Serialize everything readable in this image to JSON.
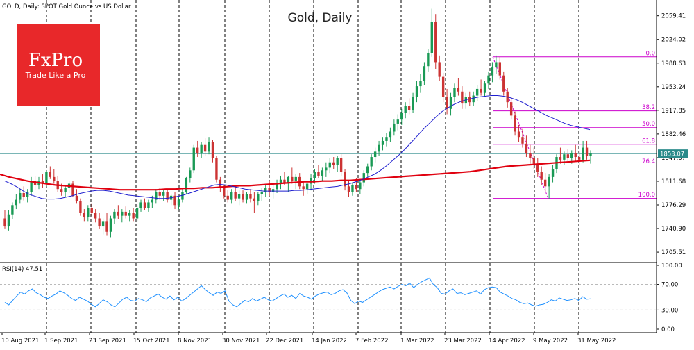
{
  "chart_data": {
    "type": "candlestick",
    "symbol_info": "GOLD, Daily:  SPOT Gold Ounce vs US Dollar",
    "title": "Gold, Daily",
    "brand": {
      "name": "FxPro",
      "tagline": "Trade Like a Pro",
      "color": "#e8282a"
    },
    "price_scale": {
      "min": 1690,
      "max": 2083,
      "labels": [
        "2059.41",
        "2024.02",
        "1988.63",
        "1953.24",
        "1917.85",
        "1882.46",
        "1847.07",
        "1811.68",
        "1776.29",
        "1740.90",
        "1705.51"
      ],
      "values": [
        2059.41,
        2024.02,
        1988.63,
        1953.24,
        1917.85,
        1882.46,
        1847.07,
        1811.68,
        1776.29,
        1740.9,
        1705.51
      ]
    },
    "current_price": {
      "label": "1853.07",
      "value": 1853.07
    },
    "x_labels": [
      "10 Aug 2021",
      "1 Sep 2021",
      "23 Sep 2021",
      "15 Oct 2021",
      "8 Nov 2021",
      "30 Nov 2021",
      "22 Dec 2021",
      "14 Jan 2022",
      "7 Feb 2022",
      "1 Mar 2022",
      "23 Mar 2022",
      "14 Apr 2022",
      "9 May 2022",
      "31 May 2022"
    ],
    "fibonacci": {
      "high": 1998,
      "low": 1786,
      "levels": [
        {
          "label": "0.0",
          "ratio": 0.0
        },
        {
          "label": "38.2",
          "ratio": 0.382
        },
        {
          "label": "50.0",
          "ratio": 0.5
        },
        {
          "label": "61.8",
          "ratio": 0.618
        },
        {
          "label": "76.4",
          "ratio": 0.764
        },
        {
          "label": "100.0",
          "ratio": 1.0
        }
      ]
    },
    "candles": [
      [
        1756,
        1768,
        1740,
        1744
      ],
      [
        1744,
        1768,
        1738,
        1762
      ],
      [
        1762,
        1780,
        1755,
        1776
      ],
      [
        1776,
        1792,
        1770,
        1784
      ],
      [
        1784,
        1800,
        1778,
        1794
      ],
      [
        1794,
        1804,
        1783,
        1788
      ],
      [
        1788,
        1800,
        1780,
        1796
      ],
      [
        1796,
        1818,
        1790,
        1812
      ],
      [
        1812,
        1820,
        1798,
        1806
      ],
      [
        1806,
        1818,
        1800,
        1812
      ],
      [
        1812,
        1822,
        1802,
        1808
      ],
      [
        1808,
        1828,
        1804,
        1826
      ],
      [
        1826,
        1834,
        1815,
        1818
      ],
      [
        1818,
        1830,
        1808,
        1812
      ],
      [
        1812,
        1820,
        1795,
        1800
      ],
      [
        1800,
        1808,
        1790,
        1796
      ],
      [
        1796,
        1806,
        1788,
        1802
      ],
      [
        1802,
        1812,
        1794,
        1808
      ],
      [
        1808,
        1812,
        1788,
        1790
      ],
      [
        1790,
        1800,
        1778,
        1782
      ],
      [
        1782,
        1786,
        1760,
        1764
      ],
      [
        1764,
        1770,
        1752,
        1758
      ],
      [
        1758,
        1776,
        1752,
        1772
      ],
      [
        1772,
        1778,
        1760,
        1764
      ],
      [
        1764,
        1770,
        1750,
        1756
      ],
      [
        1756,
        1764,
        1740,
        1744
      ],
      [
        1744,
        1756,
        1732,
        1752
      ],
      [
        1752,
        1764,
        1730,
        1736
      ],
      [
        1736,
        1760,
        1728,
        1756
      ],
      [
        1756,
        1770,
        1748,
        1766
      ],
      [
        1766,
        1776,
        1755,
        1760
      ],
      [
        1760,
        1770,
        1750,
        1766
      ],
      [
        1766,
        1774,
        1756,
        1760
      ],
      [
        1760,
        1768,
        1752,
        1764
      ],
      [
        1764,
        1772,
        1752,
        1756
      ],
      [
        1756,
        1776,
        1752,
        1772
      ],
      [
        1772,
        1784,
        1766,
        1780
      ],
      [
        1780,
        1786,
        1768,
        1772
      ],
      [
        1772,
        1784,
        1766,
        1780
      ],
      [
        1780,
        1790,
        1772,
        1784
      ],
      [
        1784,
        1800,
        1778,
        1796
      ],
      [
        1796,
        1802,
        1784,
        1790
      ],
      [
        1790,
        1800,
        1782,
        1796
      ],
      [
        1796,
        1800,
        1780,
        1784
      ],
      [
        1784,
        1792,
        1776,
        1790
      ],
      [
        1790,
        1796,
        1770,
        1776
      ],
      [
        1776,
        1788,
        1770,
        1784
      ],
      [
        1784,
        1800,
        1780,
        1796
      ],
      [
        1796,
        1818,
        1792,
        1816
      ],
      [
        1816,
        1832,
        1810,
        1828
      ],
      [
        1828,
        1866,
        1824,
        1862
      ],
      [
        1862,
        1872,
        1848,
        1854
      ],
      [
        1854,
        1870,
        1846,
        1866
      ],
      [
        1866,
        1876,
        1850,
        1856
      ],
      [
        1856,
        1878,
        1852,
        1870
      ],
      [
        1870,
        1874,
        1840,
        1846
      ],
      [
        1846,
        1850,
        1810,
        1814
      ],
      [
        1814,
        1818,
        1796,
        1802
      ],
      [
        1802,
        1806,
        1786,
        1790
      ],
      [
        1790,
        1798,
        1780,
        1784
      ],
      [
        1784,
        1800,
        1778,
        1796
      ],
      [
        1796,
        1804,
        1782,
        1786
      ],
      [
        1786,
        1798,
        1776,
        1792
      ],
      [
        1792,
        1798,
        1780,
        1784
      ],
      [
        1784,
        1796,
        1778,
        1792
      ],
      [
        1792,
        1800,
        1780,
        1786
      ],
      [
        1786,
        1796,
        1764,
        1782
      ],
      [
        1782,
        1796,
        1776,
        1792
      ],
      [
        1792,
        1802,
        1782,
        1796
      ],
      [
        1796,
        1808,
        1788,
        1802
      ],
      [
        1802,
        1812,
        1790,
        1796
      ],
      [
        1796,
        1806,
        1786,
        1800
      ],
      [
        1800,
        1814,
        1794,
        1808
      ],
      [
        1808,
        1820,
        1800,
        1814
      ],
      [
        1814,
        1826,
        1806,
        1808
      ],
      [
        1808,
        1820,
        1796,
        1818
      ],
      [
        1818,
        1832,
        1808,
        1812
      ],
      [
        1812,
        1822,
        1800,
        1818
      ],
      [
        1818,
        1824,
        1800,
        1804
      ],
      [
        1804,
        1812,
        1790,
        1800
      ],
      [
        1800,
        1812,
        1792,
        1808
      ],
      [
        1808,
        1822,
        1798,
        1816
      ],
      [
        1816,
        1830,
        1808,
        1826
      ],
      [
        1826,
        1836,
        1816,
        1820
      ],
      [
        1820,
        1832,
        1812,
        1828
      ],
      [
        1828,
        1840,
        1818,
        1832
      ],
      [
        1832,
        1846,
        1824,
        1840
      ],
      [
        1840,
        1848,
        1830,
        1836
      ],
      [
        1836,
        1850,
        1826,
        1846
      ],
      [
        1846,
        1852,
        1820,
        1826
      ],
      [
        1826,
        1830,
        1798,
        1804
      ],
      [
        1804,
        1812,
        1788,
        1796
      ],
      [
        1796,
        1810,
        1790,
        1806
      ],
      [
        1806,
        1816,
        1796,
        1800
      ],
      [
        1800,
        1814,
        1792,
        1810
      ],
      [
        1810,
        1828,
        1804,
        1824
      ],
      [
        1824,
        1838,
        1818,
        1834
      ],
      [
        1834,
        1852,
        1828,
        1848
      ],
      [
        1848,
        1862,
        1840,
        1856
      ],
      [
        1856,
        1872,
        1850,
        1866
      ],
      [
        1866,
        1878,
        1858,
        1872
      ],
      [
        1872,
        1884,
        1864,
        1878
      ],
      [
        1878,
        1892,
        1870,
        1886
      ],
      [
        1886,
        1904,
        1880,
        1898
      ],
      [
        1898,
        1912,
        1888,
        1904
      ],
      [
        1904,
        1920,
        1896,
        1914
      ],
      [
        1914,
        1930,
        1906,
        1924
      ],
      [
        1924,
        1936,
        1912,
        1918
      ],
      [
        1918,
        1944,
        1914,
        1938
      ],
      [
        1938,
        1962,
        1930,
        1954
      ],
      [
        1954,
        1972,
        1944,
        1962
      ],
      [
        1962,
        1990,
        1956,
        1984
      ],
      [
        1984,
        2010,
        1976,
        2004
      ],
      [
        2004,
        2070,
        1998,
        2050
      ],
      [
        2050,
        2062,
        1980,
        1990
      ],
      [
        1990,
        2000,
        1962,
        1968
      ],
      [
        1968,
        1974,
        1930,
        1938
      ],
      [
        1938,
        1950,
        1912,
        1920
      ],
      [
        1920,
        1944,
        1910,
        1938
      ],
      [
        1938,
        1958,
        1930,
        1952
      ],
      [
        1952,
        1966,
        1940,
        1946
      ],
      [
        1946,
        1954,
        1920,
        1928
      ],
      [
        1928,
        1944,
        1920,
        1938
      ],
      [
        1938,
        1946,
        1924,
        1930
      ],
      [
        1930,
        1946,
        1924,
        1940
      ],
      [
        1940,
        1956,
        1932,
        1950
      ],
      [
        1950,
        1964,
        1940,
        1944
      ],
      [
        1944,
        1962,
        1938,
        1958
      ],
      [
        1958,
        1976,
        1950,
        1970
      ],
      [
        1970,
        1990,
        1960,
        1982
      ],
      [
        1982,
        2000,
        1972,
        1990
      ],
      [
        1990,
        1998,
        1964,
        1970
      ],
      [
        1970,
        1976,
        1940,
        1946
      ],
      [
        1946,
        1952,
        1922,
        1930
      ],
      [
        1930,
        1938,
        1904,
        1910
      ],
      [
        1910,
        1916,
        1880,
        1886
      ],
      [
        1886,
        1896,
        1870,
        1878
      ],
      [
        1878,
        1890,
        1862,
        1868
      ],
      [
        1868,
        1880,
        1848,
        1854
      ],
      [
        1854,
        1866,
        1838,
        1846
      ],
      [
        1846,
        1862,
        1830,
        1838
      ],
      [
        1838,
        1846,
        1818,
        1826
      ],
      [
        1826,
        1834,
        1806,
        1814
      ],
      [
        1814,
        1824,
        1796,
        1804
      ],
      [
        1804,
        1822,
        1786,
        1818
      ],
      [
        1818,
        1836,
        1810,
        1830
      ],
      [
        1830,
        1852,
        1824,
        1848
      ],
      [
        1848,
        1862,
        1838,
        1844
      ],
      [
        1844,
        1856,
        1836,
        1852
      ],
      [
        1852,
        1860,
        1840,
        1846
      ],
      [
        1846,
        1858,
        1838,
        1854
      ],
      [
        1854,
        1866,
        1842,
        1848
      ],
      [
        1848,
        1856,
        1836,
        1844
      ],
      [
        1844,
        1872,
        1840,
        1862
      ],
      [
        1862,
        1872,
        1844,
        1850
      ],
      [
        1850,
        1858,
        1838,
        1853
      ]
    ],
    "sma_blue": [
      1812,
      1808,
      1803,
      1797,
      1792,
      1789,
      1786,
      1785,
      1785,
      1786,
      1788,
      1790,
      1793,
      1795,
      1797,
      1798,
      1798,
      1797,
      1795,
      1793,
      1791,
      1790,
      1789,
      1788,
      1787,
      1786,
      1786,
      1787,
      1789,
      1791,
      1794,
      1797,
      1800,
      1803,
      1806,
      1807,
      1806,
      1804,
      1802,
      1800,
      1799,
      1798,
      1797,
      1797,
      1797,
      1797,
      1797,
      1798,
      1798,
      1799,
      1800,
      1801,
      1802,
      1803,
      1804,
      1806,
      1808,
      1811,
      1814,
      1818,
      1822,
      1828,
      1835,
      1843,
      1851,
      1860,
      1870,
      1880,
      1890,
      1899,
      1908,
      1916,
      1922,
      1927,
      1931,
      1934,
      1936,
      1938,
      1939,
      1940,
      1940,
      1939,
      1937,
      1934,
      1930,
      1925,
      1920,
      1915,
      1910,
      1906,
      1902,
      1898,
      1895,
      1893,
      1891,
      1889
    ],
    "sma_red": [
      1822,
      1818,
      1815,
      1812,
      1810,
      1808,
      1806,
      1805,
      1804,
      1803,
      1802,
      1801,
      1800,
      1799,
      1799,
      1799,
      1799,
      1799,
      1800,
      1800,
      1801,
      1801,
      1802,
      1802,
      1803,
      1804,
      1805,
      1805,
      1806,
      1807,
      1808,
      1809,
      1810,
      1811,
      1811,
      1812,
      1812,
      1813,
      1813,
      1814,
      1815,
      1816,
      1817,
      1818,
      1819,
      1820,
      1821,
      1822,
      1823,
      1824,
      1825,
      1826,
      1828,
      1830,
      1832,
      1834,
      1835,
      1836,
      1837,
      1838,
      1839,
      1840,
      1841,
      1842,
      1843
    ],
    "rsi": {
      "label": "RSI(14) 47.51",
      "scale_labels": [
        "100.00",
        "70.00",
        "30.00",
        "0.00"
      ],
      "scale_values": [
        100,
        70,
        30,
        0
      ],
      "values": [
        42,
        38,
        45,
        52,
        58,
        55,
        60,
        63,
        57,
        54,
        50,
        48,
        52,
        55,
        60,
        57,
        53,
        48,
        45,
        50,
        47,
        44,
        39,
        35,
        40,
        46,
        43,
        38,
        35,
        41,
        47,
        50,
        45,
        44,
        48,
        46,
        43,
        49,
        52,
        55,
        50,
        47,
        52,
        46,
        50,
        44,
        48,
        53,
        58,
        63,
        68,
        62,
        57,
        53,
        58,
        56,
        60,
        44,
        38,
        35,
        40,
        45,
        43,
        48,
        44,
        47,
        50,
        46,
        44,
        48,
        52,
        55,
        50,
        53,
        48,
        56,
        52,
        50,
        47,
        52,
        55,
        57,
        58,
        54,
        56,
        60,
        62,
        57,
        45,
        40,
        44,
        42,
        46,
        50,
        54,
        58,
        62,
        64,
        66,
        63,
        67,
        70,
        68,
        72,
        65,
        70,
        74,
        77,
        80,
        70,
        65,
        56,
        55,
        60,
        63,
        56,
        57,
        54,
        56,
        58,
        60,
        55,
        62,
        65,
        66,
        65,
        58,
        55,
        52,
        48,
        46,
        42,
        40,
        41,
        38,
        36,
        38,
        39,
        42,
        46,
        44,
        49,
        47,
        45,
        46,
        48,
        45,
        51,
        47,
        47.51
      ]
    }
  }
}
